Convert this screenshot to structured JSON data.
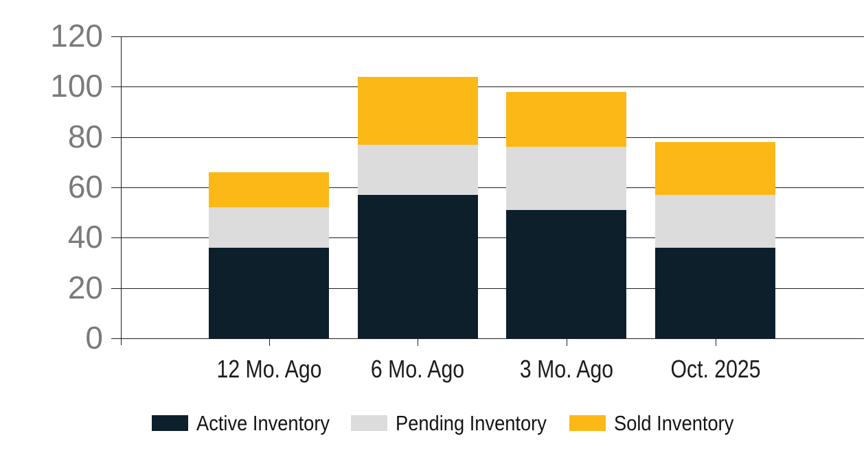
{
  "chart_data": {
    "type": "bar",
    "variant": "stacked-vertical",
    "title": "",
    "categories": [
      "12 Mo. Ago",
      "6 Mo. Ago",
      "3 Mo. Ago",
      "Oct. 2025"
    ],
    "series": [
      {
        "name": "Active Inventory",
        "color": "#0c1f2b",
        "values": [
          36,
          57,
          51,
          36
        ]
      },
      {
        "name": "Pending Inventory",
        "color": "#dcdcdc",
        "values": [
          16,
          20,
          25,
          21
        ]
      },
      {
        "name": "Sold Inventory",
        "color": "#fbb817",
        "values": [
          14,
          27,
          22,
          21
        ]
      }
    ],
    "stack_totals": [
      66,
      104,
      98,
      78
    ],
    "xlabel": "",
    "ylabel": "",
    "ylim": [
      0,
      120
    ],
    "yticks": [
      0,
      20,
      40,
      60,
      80,
      100,
      120
    ],
    "grid": true,
    "legend_position": "bottom",
    "colors": {
      "background": "#ffffff",
      "gridline": "#1f1f1f",
      "y_tick_label": "#7a7a7a",
      "x_tick_label": "#1c1c1c",
      "legend_text": "#141414"
    }
  }
}
